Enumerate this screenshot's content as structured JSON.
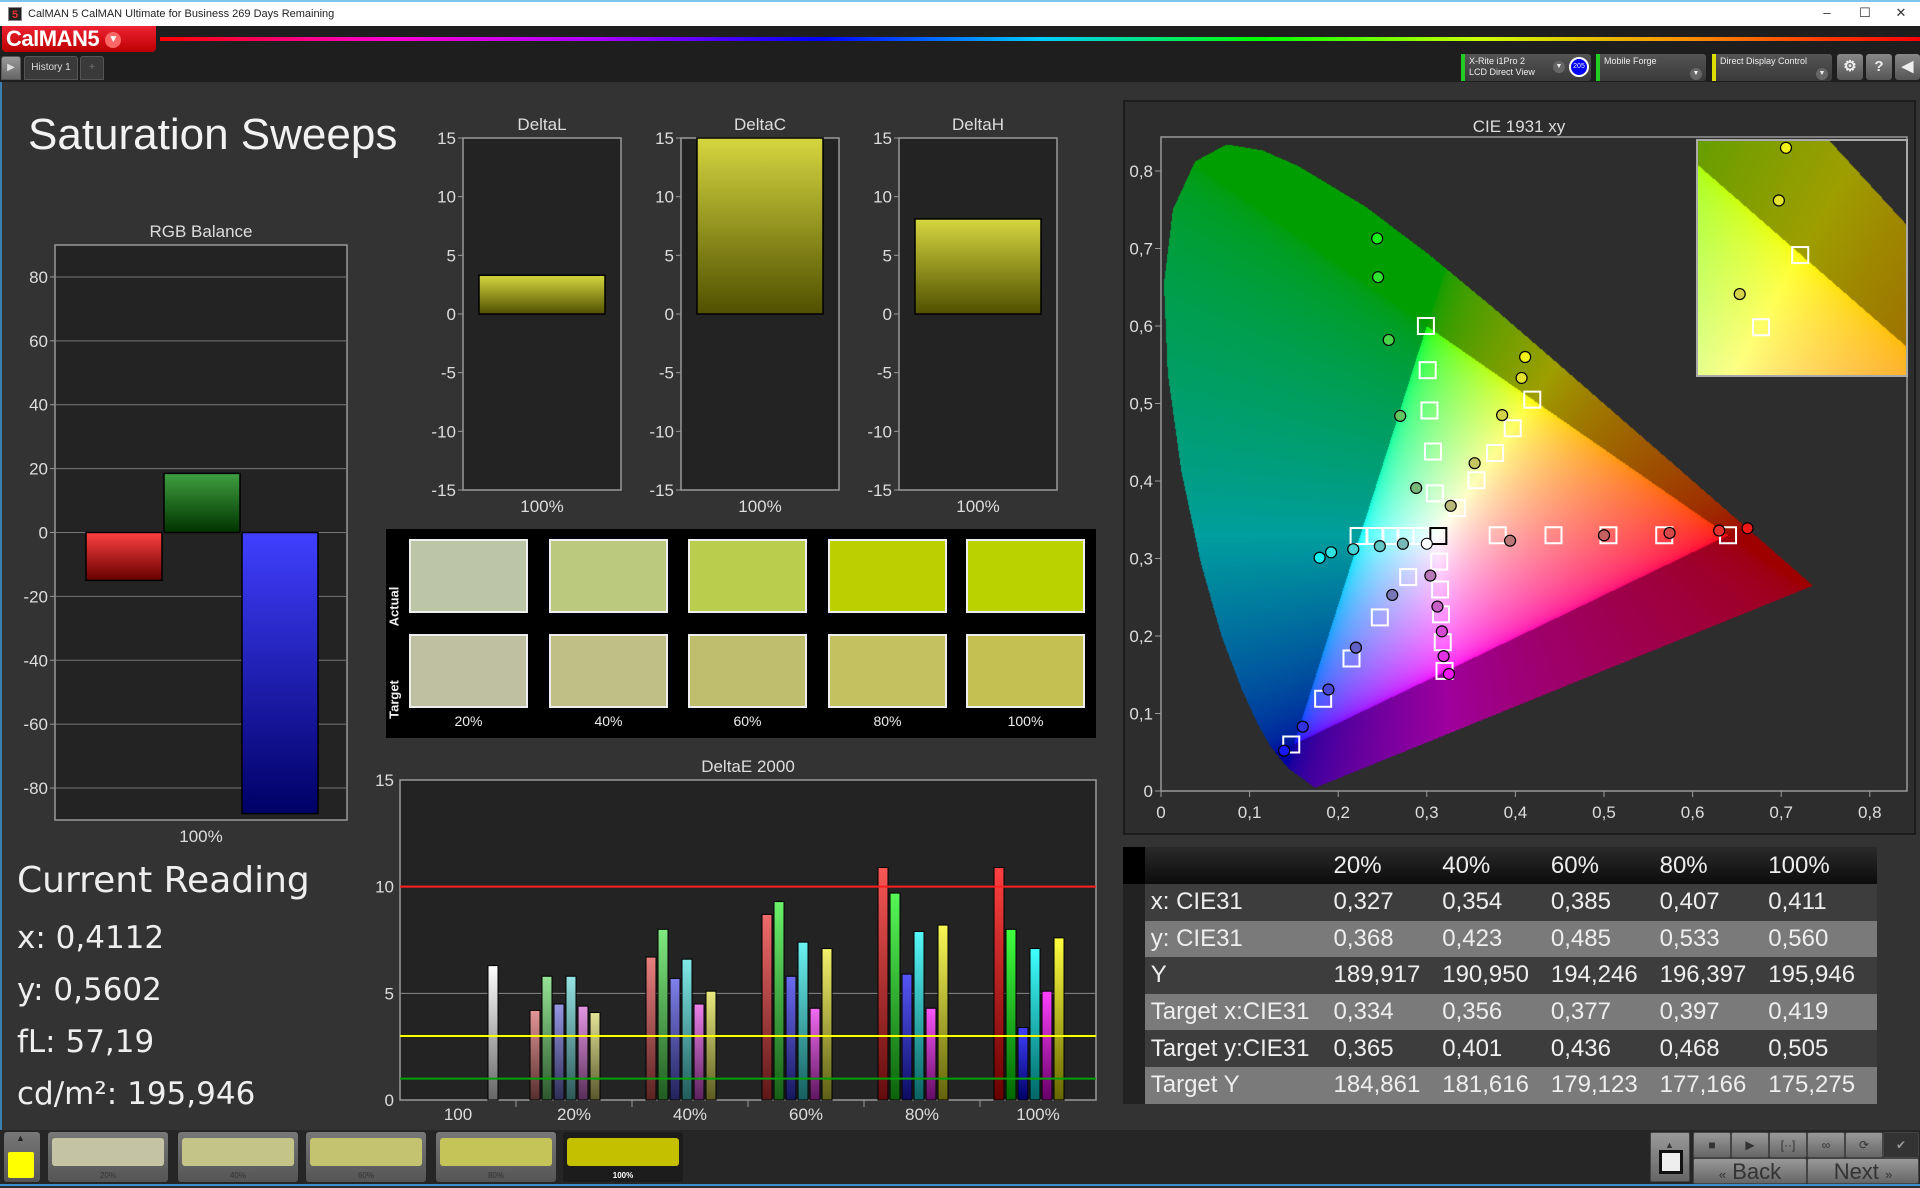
{
  "window": {
    "title": "CalMAN 5 CalMAN Ultimate for Business 269 Days Remaining",
    "minimize": "–",
    "maximize": "☐",
    "close": "✕"
  },
  "header": {
    "logo": "CalMAN5",
    "history_tab": "History 1",
    "add_tab": "+",
    "meter": {
      "line1": "X-Rite i1Pro 2",
      "line2": "LCD Direct View",
      "badge": "205",
      "accent": "#22cc22"
    },
    "source": {
      "label": "Mobile Forge",
      "accent": "#22cc22"
    },
    "display": {
      "label": "Direct Display Control",
      "accent": "#dddd00"
    },
    "icons": [
      "gear-icon",
      "help-icon",
      "collapse-left-icon"
    ]
  },
  "page": {
    "title": "Saturation Sweeps"
  },
  "swatches": {
    "actual_label": "Actual",
    "target_label": "Target",
    "labels": [
      "20%",
      "40%",
      "60%",
      "80%",
      "100%"
    ],
    "actual": [
      "#bcc6a6",
      "#bbc97f",
      "#bacd4c",
      "#bccf00",
      "#b9d300"
    ],
    "target": [
      "#bfbfa2",
      "#c0c086",
      "#bfbe6c",
      "#c3c160",
      "#c4c052"
    ]
  },
  "current_reading": {
    "title": "Current Reading",
    "items": [
      {
        "label": "x: ",
        "value": "0,4112"
      },
      {
        "label": "y: ",
        "value": "0,5602"
      },
      {
        "label": "fL: ",
        "value": "57,19"
      },
      {
        "label": "cd/m²: ",
        "value": "195,946"
      }
    ]
  },
  "table": {
    "headers": [
      "",
      "20%",
      "40%",
      "60%",
      "80%",
      "100%"
    ],
    "rows": [
      {
        "label": "x: CIE31",
        "values": [
          "0,327",
          "0,354",
          "0,385",
          "0,407",
          "0,411"
        ]
      },
      {
        "label": "y: CIE31",
        "values": [
          "0,368",
          "0,423",
          "0,485",
          "0,533",
          "0,560"
        ]
      },
      {
        "label": "Y",
        "values": [
          "189,917",
          "190,950",
          "194,246",
          "196,397",
          "195,946"
        ]
      },
      {
        "label": "Target x:CIE31",
        "values": [
          "0,334",
          "0,356",
          "0,377",
          "0,397",
          "0,419"
        ]
      },
      {
        "label": "Target y:CIE31",
        "values": [
          "0,365",
          "0,401",
          "0,436",
          "0,468",
          "0,505"
        ]
      },
      {
        "label": "Target Y",
        "values": [
          "184,861",
          "181,616",
          "179,123",
          "177,166",
          "175,275"
        ]
      }
    ]
  },
  "footer": {
    "thumbnails": [
      {
        "label": "20%",
        "color": "#c4c4a4"
      },
      {
        "label": "40%",
        "color": "#c4c488"
      },
      {
        "label": "60%",
        "color": "#c4c470"
      },
      {
        "label": "80%",
        "color": "#c4c458"
      },
      {
        "label": "100%",
        "color": "#c4c000"
      }
    ],
    "current_color": "#ffff00",
    "back": "Back",
    "next": "Next",
    "controls": [
      "stop-icon",
      "play-icon",
      "range-icon",
      "loop-icon",
      "refresh-icon",
      "check-icon"
    ]
  },
  "chart_data": [
    {
      "id": "rgb",
      "type": "bar",
      "title": "RGB Balance",
      "categories": [
        "100%"
      ],
      "ylim": [
        -90,
        90
      ],
      "yticks": [
        "80",
        "60",
        "40",
        "20",
        "0",
        "-20",
        "-40",
        "-60",
        "-80"
      ],
      "grid": true,
      "series": [
        {
          "color": "#ff0000",
          "values": [
            -15
          ]
        },
        {
          "color": "#008000",
          "values": [
            18.5
          ]
        },
        {
          "color": "#0000ff",
          "values": [
            -88
          ]
        }
      ]
    },
    {
      "id": "deltal",
      "type": "bar",
      "title": "DeltaL",
      "categories": [
        "100%"
      ],
      "values": [
        3.3
      ],
      "ylim": [
        -15,
        15
      ],
      "yticks": [
        "15",
        "10",
        "5",
        "0",
        "-5",
        "-10",
        "-15"
      ],
      "color": "#c8c800"
    },
    {
      "id": "deltac",
      "type": "bar",
      "title": "DeltaC",
      "categories": [
        "100%"
      ],
      "values": [
        15
      ],
      "ylim": [
        -15,
        15
      ],
      "yticks": [
        "15",
        "10",
        "5",
        "0",
        "-5",
        "-10",
        "-15"
      ],
      "color": "#c8c800"
    },
    {
      "id": "deltah",
      "type": "bar",
      "title": "DeltaH",
      "categories": [
        "100%"
      ],
      "values": [
        8.1
      ],
      "ylim": [
        -15,
        15
      ],
      "yticks": [
        "15",
        "10",
        "5",
        "0",
        "-5",
        "-10",
        "-15"
      ],
      "color": "#c8c800"
    },
    {
      "id": "deltae",
      "type": "bar",
      "title": "DeltaE 2000",
      "categories": [
        "100",
        "20%",
        "40%",
        "60%",
        "80%",
        "100%"
      ],
      "ylim": [
        0,
        15
      ],
      "yticks": [
        "15",
        "10",
        "5",
        "0"
      ],
      "white_value": 6.3,
      "series": [
        {
          "color": "#ff0000",
          "values": [
            null,
            4.2,
            6.7,
            8.7,
            10.9,
            10.9
          ]
        },
        {
          "color": "#00ff00",
          "values": [
            null,
            5.8,
            8.0,
            9.3,
            9.7,
            8.0
          ]
        },
        {
          "color": "#0000ff",
          "values": [
            null,
            4.5,
            5.7,
            5.8,
            5.9,
            3.4
          ]
        },
        {
          "color": "#00ffff",
          "values": [
            null,
            5.8,
            6.6,
            7.4,
            7.9,
            7.1
          ]
        },
        {
          "color": "#ff00ff",
          "values": [
            null,
            4.4,
            4.5,
            4.3,
            4.3,
            5.1
          ]
        },
        {
          "color": "#ffff00",
          "values": [
            null,
            4.1,
            5.1,
            7.1,
            8.2,
            7.6
          ]
        }
      ],
      "thresholds": [
        {
          "value": 10,
          "color": "#ff2020"
        },
        {
          "value": 3,
          "color": "#ffff00"
        },
        {
          "value": 1,
          "color": "#00a000"
        }
      ]
    },
    {
      "id": "cie",
      "type": "scatter",
      "title": "CIE 1931 xy",
      "xlim": [
        0,
        0.842
      ],
      "ylim": [
        0,
        0.844
      ],
      "xticks": [
        "0",
        "0,1",
        "0,2",
        "0,3",
        "0,4",
        "0,5",
        "0,6",
        "0,7",
        "0,8"
      ],
      "yticks": [
        "0",
        "0,1",
        "0,2",
        "0,3",
        "0,4",
        "0,5",
        "0,6",
        "0,7",
        "0,8"
      ],
      "inset": {
        "xlim": [
          0.361,
          0.479
        ],
        "ylim": [
          0.443,
          0.564
        ]
      },
      "white": {
        "target": [
          0.313,
          0.329
        ],
        "actual": [
          0.3,
          0.319
        ]
      },
      "series": [
        {
          "color": "#ff0000",
          "targets": [
            [
              0.38,
              0.33
            ],
            [
              0.443,
              0.33
            ],
            [
              0.505,
              0.33
            ],
            [
              0.568,
              0.33
            ],
            [
              0.64,
              0.33
            ]
          ],
          "actuals": [
            [
              0.394,
              0.323
            ],
            [
              0.5,
              0.33
            ],
            [
              0.574,
              0.333
            ],
            [
              0.63,
              0.336
            ],
            [
              0.662,
              0.339
            ]
          ]
        },
        {
          "color": "#00ff00",
          "targets": [
            [
              0.309,
              0.384
            ],
            [
              0.307,
              0.438
            ],
            [
              0.303,
              0.491
            ],
            [
              0.301,
              0.543
            ],
            [
              0.299,
              0.6
            ]
          ],
          "actuals": [
            [
              0.288,
              0.391
            ],
            [
              0.27,
              0.484
            ],
            [
              0.257,
              0.582
            ],
            [
              0.245,
              0.663
            ],
            [
              0.244,
              0.713
            ]
          ]
        },
        {
          "color": "#0000ff",
          "targets": [
            [
              0.279,
              0.276
            ],
            [
              0.247,
              0.224
            ],
            [
              0.215,
              0.171
            ],
            [
              0.183,
              0.119
            ],
            [
              0.147,
              0.06
            ]
          ],
          "actuals": [
            [
              0.261,
              0.253
            ],
            [
              0.22,
              0.185
            ],
            [
              0.189,
              0.131
            ],
            [
              0.16,
              0.083
            ],
            [
              0.139,
              0.052
            ]
          ]
        },
        {
          "color": "#00ffff",
          "targets": [
            [
              0.294,
              0.329
            ],
            [
              0.276,
              0.329
            ],
            [
              0.259,
              0.329
            ],
            [
              0.242,
              0.329
            ],
            [
              0.223,
              0.329
            ]
          ],
          "actuals": [
            [
              0.273,
              0.319
            ],
            [
              0.247,
              0.316
            ],
            [
              0.217,
              0.312
            ],
            [
              0.192,
              0.308
            ],
            [
              0.179,
              0.301
            ]
          ]
        },
        {
          "color": "#ff00ff",
          "targets": [
            [
              0.314,
              0.296
            ],
            [
              0.315,
              0.26
            ],
            [
              0.316,
              0.228
            ],
            [
              0.318,
              0.192
            ],
            [
              0.32,
              0.155
            ]
          ],
          "actuals": [
            [
              0.304,
              0.278
            ],
            [
              0.312,
              0.238
            ],
            [
              0.317,
              0.206
            ],
            [
              0.319,
              0.174
            ],
            [
              0.325,
              0.151
            ]
          ]
        },
        {
          "color": "#ffff00",
          "targets": [
            [
              0.334,
              0.365
            ],
            [
              0.356,
              0.401
            ],
            [
              0.377,
              0.436
            ],
            [
              0.397,
              0.468
            ],
            [
              0.419,
              0.505
            ]
          ],
          "actuals": [
            [
              0.327,
              0.368
            ],
            [
              0.354,
              0.423
            ],
            [
              0.385,
              0.485
            ],
            [
              0.407,
              0.533
            ],
            [
              0.411,
              0.56
            ]
          ]
        }
      ]
    }
  ]
}
